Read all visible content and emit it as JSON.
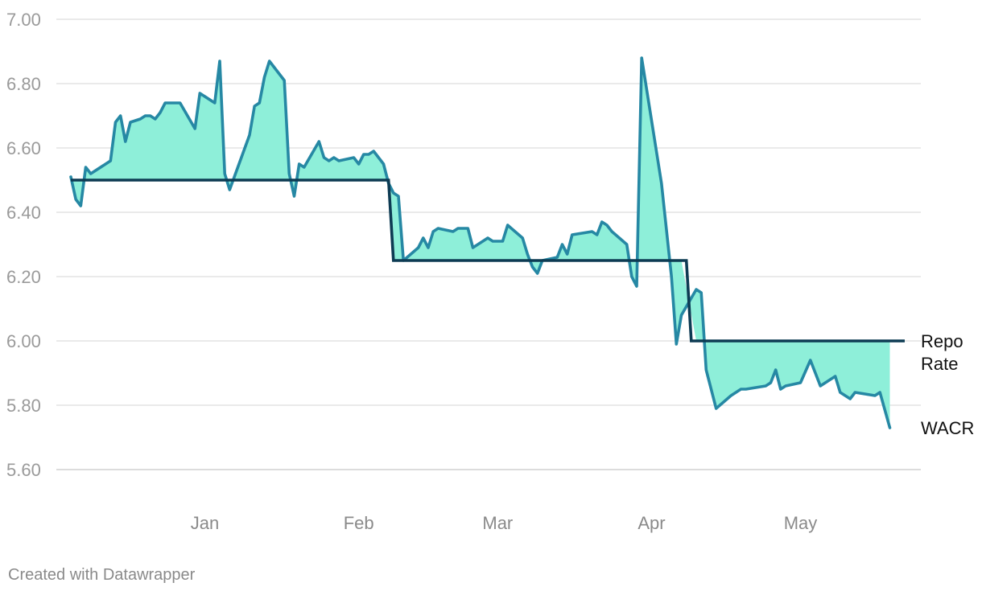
{
  "chart_data": {
    "type": "line",
    "x_unit": "date",
    "ylim": [
      5.6,
      7.0
    ],
    "y_ticks": [
      "7.00",
      "6.80",
      "6.60",
      "6.40",
      "6.20",
      "6.00",
      "5.80",
      "5.60"
    ],
    "y_tick_values": [
      7.0,
      6.8,
      6.6,
      6.4,
      6.2,
      6.0,
      5.8,
      5.6
    ],
    "x_ticks": [
      {
        "label": "Jan",
        "date": "2025-01-01"
      },
      {
        "label": "Feb",
        "date": "2025-02-01"
      },
      {
        "label": "Mar",
        "date": "2025-03-01"
      },
      {
        "label": "Apr",
        "date": "2025-04-01"
      },
      {
        "label": "May",
        "date": "2025-05-01"
      }
    ],
    "grid": true,
    "fill_between_series": true,
    "colors": {
      "wacr": "#2688a4",
      "repo": "#0d3b53",
      "fill": "#8eefd9",
      "grid": "#dedede",
      "axis": "#c8c8c8"
    },
    "series": [
      {
        "name": "Repo Rate",
        "key": "repo",
        "label_lines": [
          "Repo",
          "Rate"
        ],
        "points": [
          [
            "2024-12-05",
            6.5
          ],
          [
            "2025-02-07",
            6.5
          ],
          [
            "2025-02-08",
            6.25
          ],
          [
            "2025-04-08",
            6.25
          ],
          [
            "2025-04-09",
            6.0
          ],
          [
            "2025-05-22",
            6.0
          ]
        ]
      },
      {
        "name": "WACR",
        "key": "wacr",
        "label_lines": [
          "WACR"
        ],
        "points": [
          [
            "2024-12-05",
            6.51
          ],
          [
            "2024-12-06",
            6.44
          ],
          [
            "2024-12-07",
            6.42
          ],
          [
            "2024-12-08",
            6.54
          ],
          [
            "2024-12-09",
            6.52
          ],
          [
            "2024-12-12",
            6.55
          ],
          [
            "2024-12-13",
            6.56
          ],
          [
            "2024-12-14",
            6.68
          ],
          [
            "2024-12-15",
            6.7
          ],
          [
            "2024-12-16",
            6.62
          ],
          [
            "2024-12-17",
            6.68
          ],
          [
            "2024-12-19",
            6.69
          ],
          [
            "2024-12-20",
            6.7
          ],
          [
            "2024-12-21",
            6.7
          ],
          [
            "2024-12-22",
            6.69
          ],
          [
            "2024-12-23",
            6.71
          ],
          [
            "2024-12-24",
            6.74
          ],
          [
            "2024-12-27",
            6.74
          ],
          [
            "2024-12-30",
            6.66
          ],
          [
            "2024-12-31",
            6.77
          ],
          [
            "2025-01-03",
            6.74
          ],
          [
            "2025-01-04",
            6.87
          ],
          [
            "2025-01-05",
            6.52
          ],
          [
            "2025-01-06",
            6.47
          ],
          [
            "2025-01-10",
            6.64
          ],
          [
            "2025-01-11",
            6.73
          ],
          [
            "2025-01-12",
            6.74
          ],
          [
            "2025-01-13",
            6.82
          ],
          [
            "2025-01-14",
            6.87
          ],
          [
            "2025-01-17",
            6.81
          ],
          [
            "2025-01-18",
            6.52
          ],
          [
            "2025-01-19",
            6.45
          ],
          [
            "2025-01-20",
            6.55
          ],
          [
            "2025-01-21",
            6.54
          ],
          [
            "2025-01-24",
            6.62
          ],
          [
            "2025-01-25",
            6.57
          ],
          [
            "2025-01-26",
            6.56
          ],
          [
            "2025-01-27",
            6.57
          ],
          [
            "2025-01-28",
            6.56
          ],
          [
            "2025-01-31",
            6.57
          ],
          [
            "2025-02-01",
            6.55
          ],
          [
            "2025-02-02",
            6.58
          ],
          [
            "2025-02-03",
            6.58
          ],
          [
            "2025-02-04",
            6.59
          ],
          [
            "2025-02-06",
            6.55
          ],
          [
            "2025-02-07",
            6.49
          ],
          [
            "2025-02-08",
            6.46
          ],
          [
            "2025-02-09",
            6.45
          ],
          [
            "2025-02-10",
            6.25
          ],
          [
            "2025-02-13",
            6.29
          ],
          [
            "2025-02-14",
            6.32
          ],
          [
            "2025-02-15",
            6.29
          ],
          [
            "2025-02-16",
            6.34
          ],
          [
            "2025-02-17",
            6.35
          ],
          [
            "2025-02-20",
            6.34
          ],
          [
            "2025-02-21",
            6.35
          ],
          [
            "2025-02-23",
            6.35
          ],
          [
            "2025-02-24",
            6.29
          ],
          [
            "2025-02-27",
            6.32
          ],
          [
            "2025-02-28",
            6.31
          ],
          [
            "2025-03-02",
            6.31
          ],
          [
            "2025-03-03",
            6.36
          ],
          [
            "2025-03-06",
            6.32
          ],
          [
            "2025-03-07",
            6.27
          ],
          [
            "2025-03-08",
            6.23
          ],
          [
            "2025-03-09",
            6.21
          ],
          [
            "2025-03-10",
            6.25
          ],
          [
            "2025-03-13",
            6.26
          ],
          [
            "2025-03-14",
            6.3
          ],
          [
            "2025-03-15",
            6.27
          ],
          [
            "2025-03-16",
            6.33
          ],
          [
            "2025-03-20",
            6.34
          ],
          [
            "2025-03-21",
            6.33
          ],
          [
            "2025-03-22",
            6.37
          ],
          [
            "2025-03-23",
            6.36
          ],
          [
            "2025-03-24",
            6.34
          ],
          [
            "2025-03-27",
            6.3
          ],
          [
            "2025-03-28",
            6.2
          ],
          [
            "2025-03-29",
            6.17
          ],
          [
            "2025-03-30",
            6.88
          ],
          [
            "2025-04-03",
            6.49
          ],
          [
            "2025-04-05",
            6.2
          ],
          [
            "2025-04-06",
            5.99
          ],
          [
            "2025-04-07",
            6.08
          ],
          [
            "2025-04-10",
            6.16
          ],
          [
            "2025-04-11",
            6.15
          ],
          [
            "2025-04-12",
            5.91
          ],
          [
            "2025-04-14",
            5.79
          ],
          [
            "2025-04-17",
            5.83
          ],
          [
            "2025-04-19",
            5.85
          ],
          [
            "2025-04-20",
            5.85
          ],
          [
            "2025-04-24",
            5.86
          ],
          [
            "2025-04-25",
            5.87
          ],
          [
            "2025-04-26",
            5.91
          ],
          [
            "2025-04-27",
            5.85
          ],
          [
            "2025-04-28",
            5.86
          ],
          [
            "2025-05-01",
            5.87
          ],
          [
            "2025-05-03",
            5.94
          ],
          [
            "2025-05-05",
            5.86
          ],
          [
            "2025-05-08",
            5.89
          ],
          [
            "2025-05-09",
            5.84
          ],
          [
            "2025-05-11",
            5.82
          ],
          [
            "2025-05-12",
            5.84
          ],
          [
            "2025-05-16",
            5.83
          ],
          [
            "2025-05-17",
            5.84
          ],
          [
            "2025-05-19",
            5.73
          ]
        ]
      }
    ]
  },
  "footer": {
    "credit": "Created with Datawrapper"
  }
}
